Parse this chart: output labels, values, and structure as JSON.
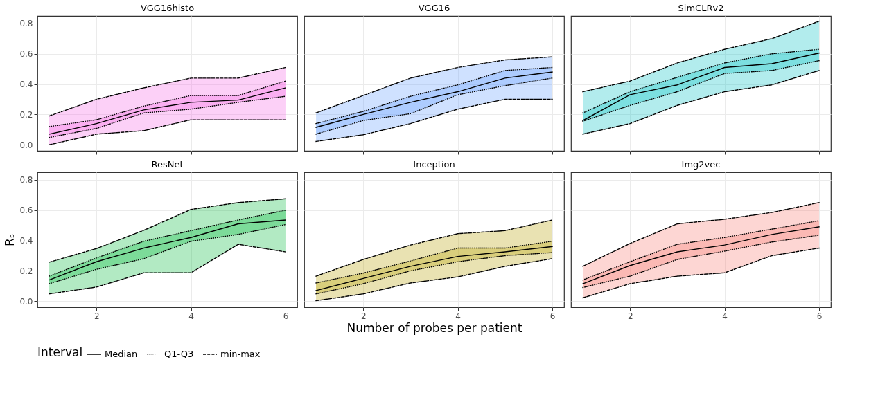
{
  "chart_data": [
    {
      "type": "line",
      "title": "VGG16histo",
      "color": "#f564e3",
      "x": [
        1,
        2,
        3,
        4,
        5,
        6
      ],
      "xlim": [
        0.75,
        6.25
      ],
      "xticks": [
        2,
        4,
        6
      ],
      "ylim": [
        -0.04,
        0.85
      ],
      "yticks": [
        {
          "value": 0,
          "label": "0.0"
        },
        {
          "value": 0.2,
          "label": "0.2"
        },
        {
          "value": 0.4,
          "label": "0.4"
        },
        {
          "value": 0.6,
          "label": "0.6"
        },
        {
          "value": 0.8,
          "label": "0.8"
        }
      ],
      "grid": true,
      "tick_labels": "y",
      "legend": "bottom",
      "legend_title": "Interval",
      "series": [
        {
          "name": "Median",
          "line_style": "solid",
          "color": "#000000",
          "values": [
            0.07,
            0.14,
            0.23,
            0.28,
            0.295,
            0.375
          ]
        },
        {
          "name": "Q1-Q3",
          "line_style": "dotted",
          "color": "#000000",
          "values": [
            0.048,
            0.108,
            0.21,
            0.235,
            0.28,
            0.32
          ],
          "lower": [
            0.048,
            0.108,
            0.21,
            0.235,
            0.28,
            0.32
          ],
          "upper": [
            0.12,
            0.165,
            0.255,
            0.325,
            0.325,
            0.42
          ]
        },
        {
          "line_style": "dotted",
          "color": "#000000",
          "values": [
            0.12,
            0.165,
            0.255,
            0.325,
            0.325,
            0.42
          ]
        },
        {
          "name": "min-max",
          "line_style": "dashed",
          "color": "#000000",
          "values": [
            0.0,
            0.07,
            0.093,
            0.165,
            0.165,
            0.165
          ],
          "lower": [
            0.0,
            0.07,
            0.093,
            0.165,
            0.165,
            0.165
          ],
          "upper": [
            0.19,
            0.3,
            0.375,
            0.44,
            0.44,
            0.51
          ]
        },
        {
          "line_style": "dashed",
          "color": "#000000",
          "values": [
            0.19,
            0.3,
            0.375,
            0.44,
            0.44,
            0.51
          ]
        }
      ]
    },
    {
      "type": "line",
      "title": "VGG16",
      "color": "#619cff",
      "x": [
        1,
        2,
        3,
        4,
        5,
        6
      ],
      "xlim": [
        0.75,
        6.25
      ],
      "xticks": [
        2,
        4,
        6
      ],
      "ylim": [
        -0.04,
        0.85
      ],
      "yticks": [
        0,
        0.2,
        0.4,
        0.6,
        0.8
      ],
      "grid": true,
      "tick_labels": false,
      "series": [
        {
          "line_style": "solid",
          "color": "#000000",
          "values": [
            0.115,
            0.2,
            0.28,
            0.35,
            0.44,
            0.48
          ]
        },
        {
          "line_style": "dotted",
          "color": "#000000",
          "values": [
            0.07,
            0.16,
            0.205,
            0.33,
            0.39,
            0.44
          ],
          "lower": [
            0.07,
            0.16,
            0.205,
            0.33,
            0.39,
            0.44
          ],
          "upper": [
            0.14,
            0.22,
            0.32,
            0.395,
            0.49,
            0.51
          ]
        },
        {
          "line_style": "dotted",
          "color": "#000000",
          "values": [
            0.14,
            0.22,
            0.32,
            0.395,
            0.49,
            0.51
          ]
        },
        {
          "line_style": "dashed",
          "color": "#000000",
          "values": [
            0.022,
            0.066,
            0.14,
            0.235,
            0.3,
            0.3
          ],
          "lower": [
            0.022,
            0.066,
            0.14,
            0.235,
            0.3,
            0.3
          ],
          "upper": [
            0.21,
            0.325,
            0.44,
            0.51,
            0.56,
            0.58
          ]
        },
        {
          "line_style": "dashed",
          "color": "#000000",
          "values": [
            0.21,
            0.325,
            0.44,
            0.51,
            0.56,
            0.58
          ]
        }
      ]
    },
    {
      "type": "line",
      "title": "SimCLRv2",
      "color": "#00bfc4",
      "x": [
        1,
        2,
        3,
        4,
        5,
        6
      ],
      "xlim": [
        0.75,
        6.25
      ],
      "xticks": [
        2,
        4,
        6
      ],
      "ylim": [
        -0.04,
        0.85
      ],
      "yticks": [
        0,
        0.2,
        0.4,
        0.6,
        0.8
      ],
      "grid": true,
      "tick_labels": false,
      "series": [
        {
          "line_style": "solid",
          "color": "#000000",
          "values": [
            0.16,
            0.33,
            0.395,
            0.51,
            0.535,
            0.605
          ]
        },
        {
          "line_style": "dotted",
          "color": "#000000",
          "values": [
            0.155,
            0.26,
            0.35,
            0.47,
            0.49,
            0.555
          ],
          "lower": [
            0.155,
            0.26,
            0.35,
            0.47,
            0.49,
            0.555
          ],
          "upper": [
            0.21,
            0.35,
            0.445,
            0.54,
            0.6,
            0.63
          ]
        },
        {
          "line_style": "dotted",
          "color": "#000000",
          "values": [
            0.21,
            0.35,
            0.445,
            0.54,
            0.6,
            0.63
          ]
        },
        {
          "line_style": "dashed",
          "color": "#000000",
          "values": [
            0.07,
            0.14,
            0.26,
            0.35,
            0.395,
            0.49
          ],
          "lower": [
            0.07,
            0.14,
            0.26,
            0.35,
            0.395,
            0.49
          ],
          "upper": [
            0.35,
            0.42,
            0.54,
            0.63,
            0.7,
            0.815
          ]
        },
        {
          "line_style": "dashed",
          "color": "#000000",
          "values": [
            0.35,
            0.42,
            0.54,
            0.63,
            0.7,
            0.815
          ]
        }
      ]
    },
    {
      "type": "line",
      "title": "ResNet",
      "color": "#00ba38",
      "x": [
        1,
        2,
        3,
        4,
        5,
        6
      ],
      "xlim": [
        0.75,
        6.25
      ],
      "xticks": [
        2,
        4,
        6
      ],
      "ylim": [
        -0.04,
        0.85
      ],
      "yticks": [
        {
          "value": 0,
          "label": "0.0"
        },
        {
          "value": 0.2,
          "label": "0.2"
        },
        {
          "value": 0.4,
          "label": "0.4"
        },
        {
          "value": 0.6,
          "label": "0.6"
        },
        {
          "value": 0.8,
          "label": "0.8"
        }
      ],
      "grid": true,
      "ylabel": "Rₛ",
      "series": [
        {
          "line_style": "solid",
          "color": "#000000",
          "values": [
            0.14,
            0.26,
            0.35,
            0.42,
            0.51,
            0.535
          ]
        },
        {
          "line_style": "dotted",
          "color": "#000000",
          "values": [
            0.115,
            0.21,
            0.28,
            0.395,
            0.44,
            0.505
          ],
          "lower": [
            0.115,
            0.21,
            0.28,
            0.395,
            0.44,
            0.505
          ],
          "upper": [
            0.165,
            0.285,
            0.395,
            0.465,
            0.535,
            0.6
          ]
        },
        {
          "line_style": "dotted",
          "color": "#000000",
          "values": [
            0.165,
            0.285,
            0.395,
            0.465,
            0.535,
            0.6
          ]
        },
        {
          "line_style": "dashed",
          "color": "#000000",
          "values": [
            0.048,
            0.093,
            0.187,
            0.187,
            0.375,
            0.325
          ],
          "lower": [
            0.048,
            0.093,
            0.187,
            0.187,
            0.375,
            0.325
          ],
          "upper": [
            0.257,
            0.347,
            0.467,
            0.605,
            0.65,
            0.675
          ]
        },
        {
          "line_style": "dashed",
          "color": "#000000",
          "values": [
            0.257,
            0.347,
            0.467,
            0.605,
            0.65,
            0.675
          ]
        }
      ]
    },
    {
      "type": "line",
      "title": "Inception",
      "color": "#b79f00",
      "x": [
        1,
        2,
        3,
        4,
        5,
        6
      ],
      "xlim": [
        0.75,
        6.25
      ],
      "xticks": [
        2,
        4,
        6
      ],
      "ylim": [
        -0.04,
        0.85
      ],
      "yticks": [
        0,
        0.2,
        0.4,
        0.6,
        0.8
      ],
      "grid": true,
      "tick_labels": "x",
      "xlabel": "Number of probes per patient",
      "series": [
        {
          "line_style": "solid",
          "color": "#000000",
          "values": [
            0.07,
            0.15,
            0.23,
            0.295,
            0.325,
            0.36
          ]
        },
        {
          "line_style": "dotted",
          "color": "#000000",
          "values": [
            0.048,
            0.115,
            0.2,
            0.26,
            0.3,
            0.32
          ],
          "lower": [
            0.048,
            0.115,
            0.2,
            0.26,
            0.3,
            0.32
          ],
          "upper": [
            0.12,
            0.185,
            0.265,
            0.35,
            0.35,
            0.395
          ]
        },
        {
          "line_style": "dotted",
          "color": "#000000",
          "values": [
            0.12,
            0.185,
            0.265,
            0.35,
            0.35,
            0.395
          ]
        },
        {
          "line_style": "dashed",
          "color": "#000000",
          "values": [
            0.003,
            0.048,
            0.12,
            0.16,
            0.23,
            0.28
          ],
          "lower": [
            0.003,
            0.048,
            0.12,
            0.16,
            0.23,
            0.28
          ],
          "upper": [
            0.165,
            0.275,
            0.37,
            0.445,
            0.465,
            0.535
          ]
        },
        {
          "line_style": "dashed",
          "color": "#000000",
          "values": [
            0.165,
            0.275,
            0.37,
            0.445,
            0.465,
            0.535
          ]
        }
      ]
    },
    {
      "type": "line",
      "title": "Img2vec",
      "color": "#f8766d",
      "x": [
        1,
        2,
        3,
        4,
        5,
        6
      ],
      "xlim": [
        0.75,
        6.25
      ],
      "xticks": [
        2,
        4,
        6
      ],
      "ylim": [
        -0.04,
        0.85
      ],
      "yticks": [
        0,
        0.2,
        0.4,
        0.6,
        0.8
      ],
      "grid": true,
      "tick_labels": "x",
      "series": [
        {
          "line_style": "solid",
          "color": "#000000",
          "values": [
            0.115,
            0.235,
            0.325,
            0.37,
            0.44,
            0.49
          ]
        },
        {
          "line_style": "dotted",
          "color": "#000000",
          "values": [
            0.09,
            0.165,
            0.275,
            0.33,
            0.39,
            0.435
          ],
          "lower": [
            0.09,
            0.165,
            0.275,
            0.33,
            0.39,
            0.435
          ],
          "upper": [
            0.14,
            0.26,
            0.375,
            0.42,
            0.475,
            0.53
          ]
        },
        {
          "line_style": "dotted",
          "color": "#000000",
          "values": [
            0.14,
            0.26,
            0.375,
            0.42,
            0.475,
            0.53
          ]
        },
        {
          "line_style": "dashed",
          "color": "#000000",
          "values": [
            0.022,
            0.115,
            0.165,
            0.187,
            0.3,
            0.35
          ],
          "lower": [
            0.022,
            0.115,
            0.165,
            0.187,
            0.3,
            0.35
          ],
          "upper": [
            0.23,
            0.38,
            0.51,
            0.54,
            0.585,
            0.65
          ]
        },
        {
          "line_style": "dashed",
          "color": "#000000",
          "values": [
            0.23,
            0.38,
            0.51,
            0.54,
            0.585,
            0.65
          ]
        }
      ]
    }
  ]
}
